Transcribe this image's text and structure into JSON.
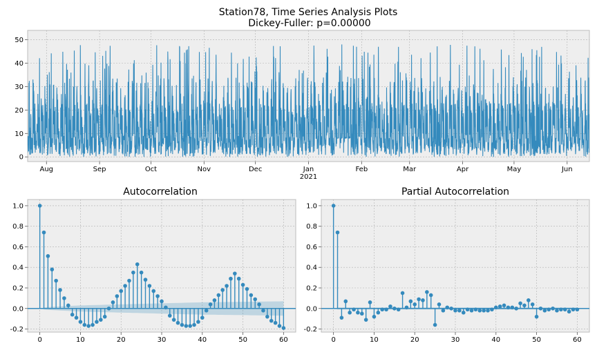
{
  "figure": {
    "title_line1": "Station78, Time Series Analysis Plots",
    "title_line2": "Dickey-Fuller: p=0.00000"
  },
  "colors": {
    "line": "#348abd",
    "band": "#348abd",
    "axes_bg": "#eeeeee",
    "grid": "#b0b0b0",
    "spine": "#bcbcbc"
  },
  "chart_data": [
    {
      "type": "line",
      "ylim": [
        -2,
        54
      ],
      "yticks": [
        0,
        10,
        20,
        30,
        40,
        50
      ],
      "x_domain_days": [
        0,
        328
      ],
      "xticks": [
        {
          "day": 11,
          "label": "Aug",
          "sublabel": ""
        },
        {
          "day": 42,
          "label": "Sep",
          "sublabel": ""
        },
        {
          "day": 72,
          "label": "Oct",
          "sublabel": ""
        },
        {
          "day": 103,
          "label": "Nov",
          "sublabel": ""
        },
        {
          "day": 133,
          "label": "Dec",
          "sublabel": ""
        },
        {
          "day": 164,
          "label": "Jan",
          "sublabel": "2021"
        },
        {
          "day": 195,
          "label": "Feb",
          "sublabel": ""
        },
        {
          "day": 223,
          "label": "Mar",
          "sublabel": ""
        },
        {
          "day": 254,
          "label": "Apr",
          "sublabel": ""
        },
        {
          "day": 284,
          "label": "May",
          "sublabel": ""
        },
        {
          "day": 315,
          "label": "Jun",
          "sublabel": ""
        }
      ]
    },
    {
      "type": "scatter",
      "title": "Autocorrelation",
      "xlim": [
        -3,
        63
      ],
      "ylim": [
        -0.23,
        1.06
      ],
      "xticks": [
        0,
        10,
        20,
        30,
        40,
        50,
        60
      ],
      "yticks": [
        -0.2,
        0.0,
        0.2,
        0.4,
        0.6,
        0.8,
        1.0
      ],
      "lags": [
        0,
        1,
        2,
        3,
        4,
        5,
        6,
        7,
        8,
        9,
        10,
        11,
        12,
        13,
        14,
        15,
        16,
        17,
        18,
        19,
        20,
        21,
        22,
        23,
        24,
        25,
        26,
        27,
        28,
        29,
        30,
        31,
        32,
        33,
        34,
        35,
        36,
        37,
        38,
        39,
        40,
        41,
        42,
        43,
        44,
        45,
        46,
        47,
        48,
        49,
        50,
        51,
        52,
        53,
        54,
        55,
        56,
        57,
        58,
        59,
        60
      ],
      "values": [
        1.0,
        0.74,
        0.51,
        0.38,
        0.27,
        0.18,
        0.1,
        0.03,
        -0.06,
        -0.09,
        -0.13,
        -0.16,
        -0.17,
        -0.16,
        -0.13,
        -0.11,
        -0.08,
        0.0,
        0.06,
        0.12,
        0.17,
        0.22,
        0.27,
        0.35,
        0.43,
        0.35,
        0.28,
        0.22,
        0.17,
        0.12,
        0.07,
        0.01,
        -0.07,
        -0.11,
        -0.14,
        -0.16,
        -0.17,
        -0.17,
        -0.16,
        -0.13,
        -0.09,
        -0.02,
        0.04,
        0.08,
        0.13,
        0.18,
        0.22,
        0.29,
        0.34,
        0.29,
        0.23,
        0.19,
        0.13,
        0.09,
        0.04,
        -0.02,
        -0.08,
        -0.12,
        -0.14,
        -0.17,
        -0.19
      ],
      "confint": [
        0.0,
        0.01,
        0.013,
        0.016,
        0.018,
        0.02,
        0.022,
        0.024,
        0.026,
        0.028,
        0.03,
        0.031,
        0.032,
        0.033,
        0.034,
        0.035,
        0.036,
        0.037,
        0.038,
        0.039,
        0.04,
        0.041,
        0.042,
        0.043,
        0.044,
        0.045,
        0.046,
        0.047,
        0.048,
        0.049,
        0.05,
        0.051,
        0.052,
        0.053,
        0.054,
        0.055,
        0.056,
        0.057,
        0.058,
        0.059,
        0.06,
        0.06,
        0.061,
        0.061,
        0.062,
        0.062,
        0.063,
        0.063,
        0.064,
        0.064,
        0.065,
        0.065,
        0.066,
        0.066,
        0.067,
        0.067,
        0.068,
        0.068,
        0.069,
        0.069,
        0.07
      ]
    },
    {
      "type": "scatter",
      "title": "Partial Autocorrelation",
      "xlim": [
        -3,
        63
      ],
      "ylim": [
        -0.23,
        1.06
      ],
      "xticks": [
        0,
        10,
        20,
        30,
        40,
        50,
        60
      ],
      "yticks": [
        -0.2,
        0.0,
        0.2,
        0.4,
        0.6,
        0.8,
        1.0
      ],
      "lags": [
        0,
        1,
        2,
        3,
        4,
        5,
        6,
        7,
        8,
        9,
        10,
        11,
        12,
        13,
        14,
        15,
        16,
        17,
        18,
        19,
        20,
        21,
        22,
        23,
        24,
        25,
        26,
        27,
        28,
        29,
        30,
        31,
        32,
        33,
        34,
        35,
        36,
        37,
        38,
        39,
        40,
        41,
        42,
        43,
        44,
        45,
        46,
        47,
        48,
        49,
        50,
        51,
        52,
        53,
        54,
        55,
        56,
        57,
        58,
        59,
        60
      ],
      "values": [
        1.0,
        0.74,
        -0.09,
        0.07,
        -0.04,
        -0.01,
        -0.04,
        -0.05,
        -0.11,
        0.06,
        -0.08,
        -0.04,
        -0.01,
        -0.01,
        0.02,
        0.0,
        -0.01,
        0.15,
        0.01,
        0.07,
        0.04,
        0.09,
        0.08,
        0.16,
        0.13,
        -0.16,
        0.04,
        -0.02,
        0.01,
        0.0,
        -0.02,
        -0.02,
        -0.04,
        -0.01,
        -0.02,
        -0.01,
        -0.02,
        -0.02,
        -0.02,
        -0.01,
        0.01,
        0.02,
        0.03,
        0.01,
        0.01,
        0.0,
        0.05,
        0.03,
        0.08,
        0.04,
        -0.08,
        0.0,
        -0.02,
        -0.01,
        0.0,
        -0.02,
        -0.01,
        -0.01,
        -0.03,
        -0.01,
        -0.01
      ],
      "confint": [
        0.0,
        0.01,
        0.01,
        0.01,
        0.01,
        0.01,
        0.01,
        0.01,
        0.01,
        0.01,
        0.01,
        0.01,
        0.01,
        0.01,
        0.01,
        0.01,
        0.01,
        0.01,
        0.01,
        0.01,
        0.01,
        0.01,
        0.01,
        0.01,
        0.01,
        0.01,
        0.01,
        0.01,
        0.01,
        0.01,
        0.01,
        0.01,
        0.01,
        0.01,
        0.01,
        0.01,
        0.01,
        0.01,
        0.01,
        0.01,
        0.01,
        0.01,
        0.01,
        0.01,
        0.01,
        0.01,
        0.01,
        0.01,
        0.01,
        0.01,
        0.01,
        0.01,
        0.01,
        0.01,
        0.01,
        0.01,
        0.01,
        0.01,
        0.01,
        0.01,
        0.01
      ]
    }
  ]
}
